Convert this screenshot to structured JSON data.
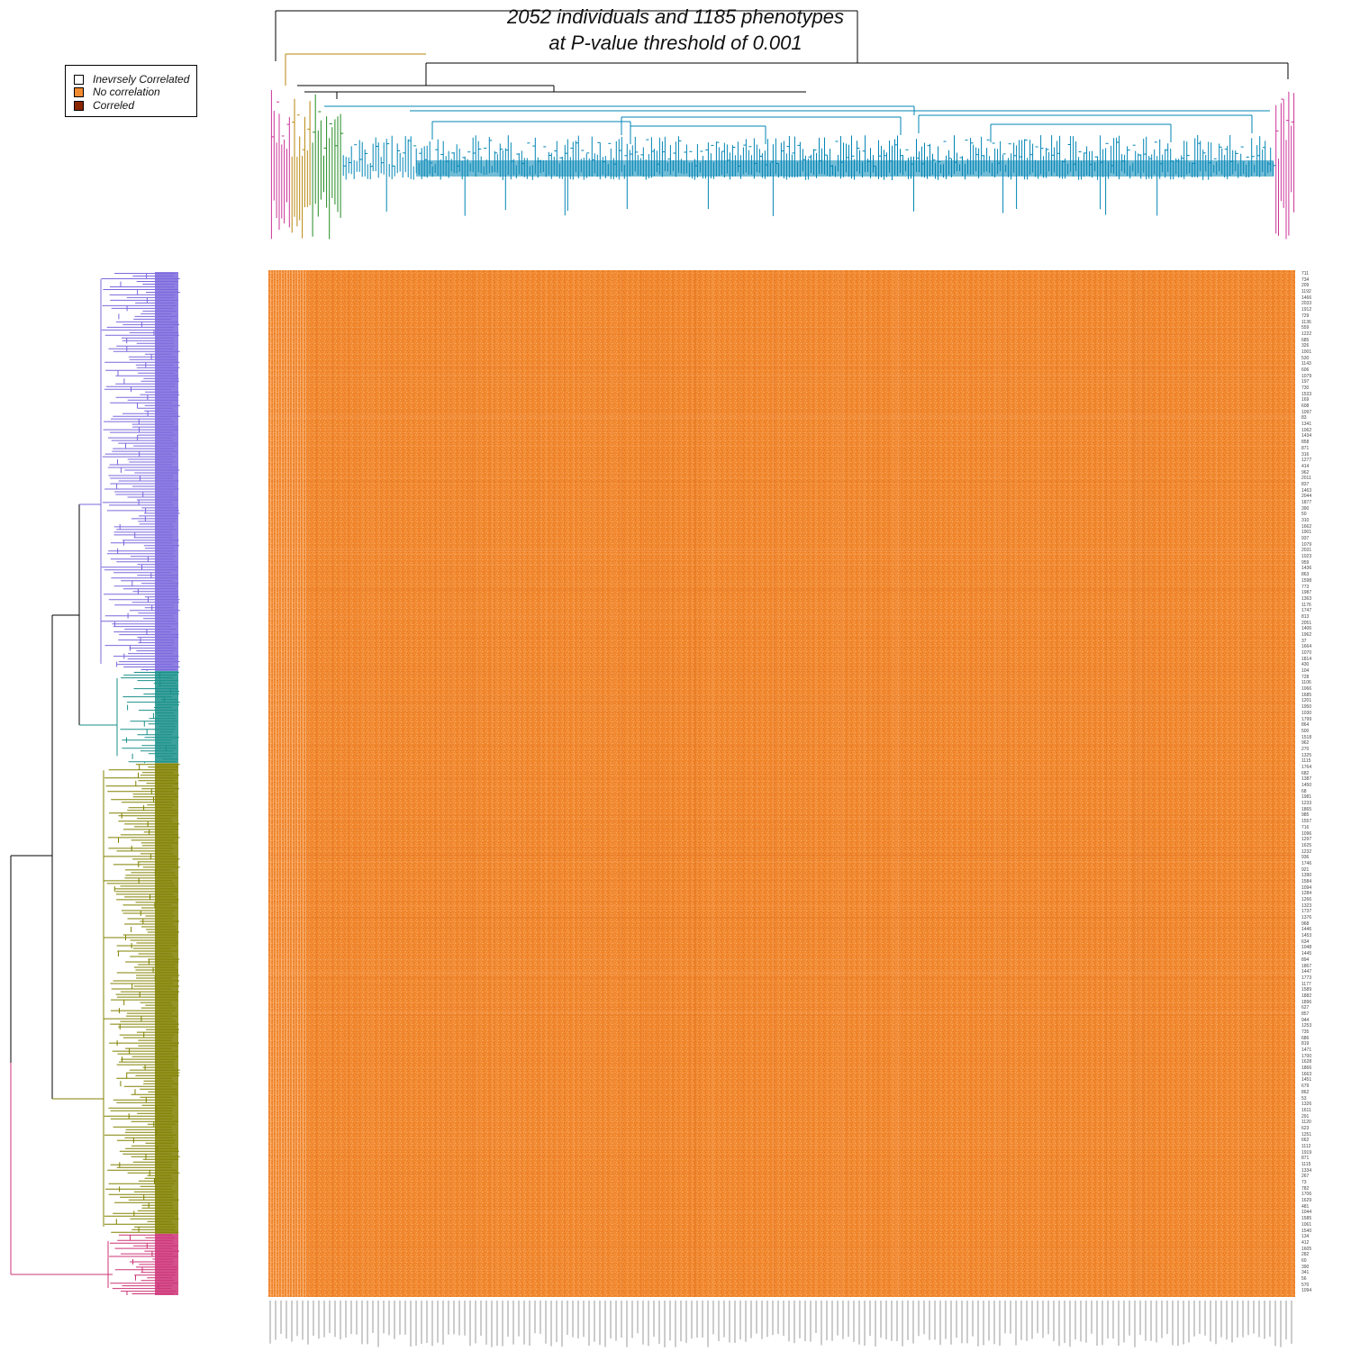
{
  "chart_data": {
    "type": "heatmap",
    "title": "2052 individuals and 1185 phenotypes\nat P-value threshold of 0.001",
    "title_lines": [
      "2052 individuals and 1185 phenotypes",
      "at P-value threshold of 0.001"
    ],
    "legend": {
      "placement": "top-left",
      "items": [
        {
          "label": "Inevrsely Correlated",
          "color": "#ffffff"
        },
        {
          "label": "No correlation",
          "color": "#f28a30"
        },
        {
          "label": "Correled",
          "color": "#8b2500"
        }
      ]
    },
    "n_rows": 2052,
    "n_columns": 1185,
    "dominant_value": "No correlation",
    "cell_colors": {
      "base": "#f28a30",
      "light": "#f7a868",
      "dark": "#e07020"
    },
    "row_dendrogram_clusters": [
      {
        "color": "#7b68dd",
        "share": 0.39
      },
      {
        "color": "#1a8f8a",
        "share": 0.09
      },
      {
        "color": "#808000",
        "share": 0.46
      },
      {
        "color": "#cc3377",
        "share": 0.06
      }
    ],
    "column_dendrogram_clusters": [
      {
        "color": "#cc3399",
        "share": 0.02
      },
      {
        "color": "#b8860b",
        "share": 0.02
      },
      {
        "color": "#228b22",
        "share": 0.03
      },
      {
        "color": "#0085b5",
        "share": 0.91
      },
      {
        "color": "#cc3399",
        "share": 0.02
      }
    ],
    "row_labels": [
      "711",
      "734",
      "209",
      "1192",
      "1466",
      "2033",
      "1912",
      "729",
      "1136",
      "559",
      "1222",
      "685",
      "326",
      "1001",
      "530",
      "1143",
      "606",
      "1079",
      "197",
      "730",
      "1533",
      "169",
      "608",
      "1097",
      "83",
      "1341",
      "1062",
      "1434",
      "858",
      "871",
      "316",
      "1277",
      "414",
      "962",
      "2011",
      "837",
      "1463",
      "2044",
      "1877",
      "390",
      "50",
      "310",
      "1662",
      "1901",
      "937",
      "1079",
      "2031",
      "1023",
      "959",
      "1436",
      "863",
      "1598",
      "773",
      "1987",
      "1363",
      "1176",
      "1747",
      "813",
      "2051",
      "1406",
      "1962",
      "37",
      "1664",
      "1070",
      "1814",
      "430",
      "104",
      "728",
      "1106",
      "1066",
      "1685",
      "1201",
      "1950",
      "1030",
      "1799",
      "864",
      "500",
      "1518",
      "962",
      "270",
      "1325",
      "1115",
      "1764",
      "682",
      "1387",
      "1450",
      "68",
      "1981",
      "1233",
      "1865",
      "985",
      "1557",
      "716",
      "1096",
      "1297",
      "1625",
      "1232",
      "936",
      "1746",
      "921",
      "1390",
      "1584",
      "1094",
      "1284",
      "1266",
      "1323",
      "1737",
      "1376",
      "968",
      "1446",
      "1453",
      "634",
      "1048",
      "1445",
      "894",
      "1867",
      "1447",
      "1773",
      "1177",
      "1589",
      "1882",
      "1896",
      "627",
      "857",
      "944",
      "1253",
      "735",
      "686",
      "819",
      "1471",
      "1700",
      "1628",
      "1866",
      "1663",
      "1451",
      "679",
      "862",
      "53",
      "1326",
      "1611",
      "291",
      "1120",
      "623",
      "1251",
      "662",
      "1112",
      "1919",
      "871",
      "1115",
      "1334",
      "267",
      "73",
      "782",
      "1706",
      "1629",
      "481",
      "1044",
      "1585",
      "1061",
      "1540",
      "134",
      "412",
      "1605",
      "282",
      "60",
      "390",
      "341",
      "56",
      "570",
      "1094"
    ]
  }
}
